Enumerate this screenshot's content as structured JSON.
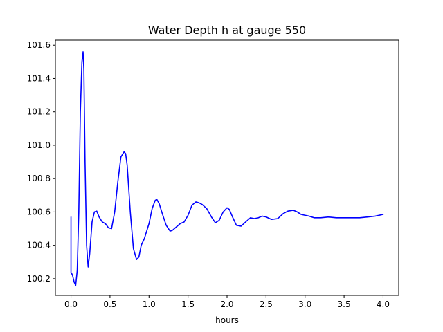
{
  "chart_data": {
    "type": "line",
    "title": "Water Depth h at gauge 550",
    "xlabel": "hours",
    "ylabel": "",
    "xlim": [
      -0.2,
      4.2
    ],
    "ylim": [
      100.1,
      101.63
    ],
    "xticks": [
      0.0,
      0.5,
      1.0,
      1.5,
      2.0,
      2.5,
      3.0,
      3.5,
      4.0
    ],
    "xtick_labels": [
      "0.0",
      "0.5",
      "1.0",
      "1.5",
      "2.0",
      "2.5",
      "3.0",
      "3.5",
      "4.0"
    ],
    "yticks": [
      100.2,
      100.4,
      100.6,
      100.8,
      101.0,
      101.2,
      101.4,
      101.6
    ],
    "ytick_labels": [
      "100.2",
      "100.4",
      "100.6",
      "100.8",
      "101.0",
      "101.2",
      "101.4",
      "101.6"
    ],
    "grid": false,
    "series": [
      {
        "color": "#0000ff",
        "x": [
          0.0,
          0.0,
          0.01,
          0.02,
          0.04,
          0.06,
          0.08,
          0.1,
          0.12,
          0.14,
          0.155,
          0.165,
          0.18,
          0.2,
          0.22,
          0.24,
          0.27,
          0.3,
          0.33,
          0.36,
          0.4,
          0.44,
          0.48,
          0.52,
          0.56,
          0.6,
          0.64,
          0.68,
          0.7,
          0.72,
          0.76,
          0.8,
          0.84,
          0.87,
          0.9,
          0.94,
          1.0,
          1.04,
          1.08,
          1.1,
          1.13,
          1.17,
          1.22,
          1.27,
          1.3,
          1.35,
          1.4,
          1.45,
          1.5,
          1.55,
          1.6,
          1.64,
          1.68,
          1.74,
          1.8,
          1.85,
          1.9,
          1.95,
          2.0,
          2.03,
          2.07,
          2.12,
          2.18,
          2.25,
          2.3,
          2.35,
          2.4,
          2.45,
          2.5,
          2.57,
          2.65,
          2.72,
          2.78,
          2.85,
          2.9,
          2.95,
          3.0,
          3.05,
          3.12,
          3.2,
          3.3,
          3.4,
          3.5,
          3.6,
          3.7,
          3.8,
          3.9,
          4.0
        ],
        "y": [
          100.57,
          100.235,
          100.23,
          100.22,
          100.18,
          100.16,
          100.25,
          100.6,
          101.2,
          101.5,
          101.56,
          101.45,
          100.9,
          100.4,
          100.27,
          100.35,
          100.54,
          100.6,
          100.605,
          100.57,
          100.54,
          100.53,
          100.505,
          100.5,
          100.6,
          100.78,
          100.93,
          100.96,
          100.95,
          100.88,
          100.6,
          100.38,
          100.315,
          100.33,
          100.4,
          100.44,
          100.53,
          100.62,
          100.67,
          100.675,
          100.65,
          100.59,
          100.52,
          100.485,
          100.49,
          100.51,
          100.53,
          100.54,
          100.58,
          100.64,
          100.66,
          100.655,
          100.645,
          100.62,
          100.57,
          100.535,
          100.55,
          100.6,
          100.625,
          100.615,
          100.57,
          100.52,
          100.515,
          100.545,
          100.565,
          100.56,
          100.565,
          100.575,
          100.57,
          100.555,
          100.56,
          100.59,
          100.605,
          100.61,
          100.6,
          100.585,
          100.58,
          100.575,
          100.565,
          100.565,
          100.57,
          100.565,
          100.565,
          100.565,
          100.565,
          100.57,
          100.575,
          100.585
        ]
      }
    ]
  }
}
